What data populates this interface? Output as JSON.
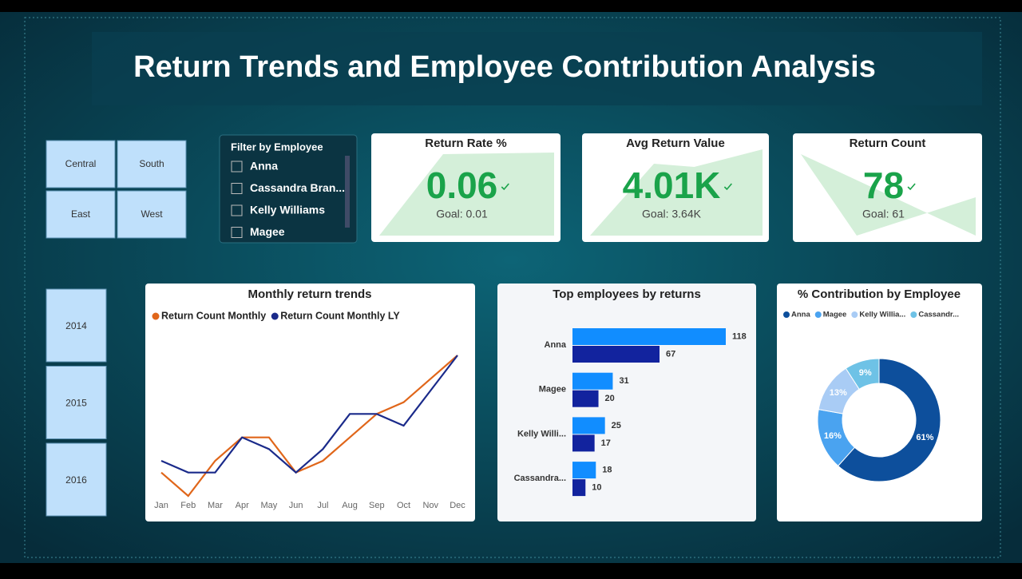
{
  "title": "Return Trends and Employee Contribution Analysis",
  "regions": [
    "Central",
    "South",
    "East",
    "West"
  ],
  "employee_filter": {
    "title": "Filter by Employee",
    "items": [
      "Anna",
      "Cassandra Bran...",
      "Kelly Williams",
      "Magee"
    ]
  },
  "years": [
    "2014",
    "2015",
    "2016"
  ],
  "kpis": [
    {
      "title": "Return Rate %",
      "value": "0.06",
      "goal": "Goal: 0.01"
    },
    {
      "title": "Avg Return Value",
      "value": "4.01K",
      "goal": "Goal: 3.64K"
    },
    {
      "title": "Return Count",
      "value": "78",
      "goal": "Goal: 61"
    }
  ],
  "chart_data": [
    {
      "type": "line",
      "title": "Monthly return trends",
      "categories": [
        "Jan",
        "Feb",
        "Mar",
        "Apr",
        "May",
        "Jun",
        "Jul",
        "Aug",
        "Sep",
        "Oct",
        "Nov",
        "Dec"
      ],
      "series": [
        {
          "name": "Return Count Monthly",
          "color": "#e0661a",
          "values": [
            3,
            1,
            4,
            6,
            6,
            3,
            4,
            6,
            8,
            9,
            11,
            13
          ]
        },
        {
          "name": "Return Count Monthly LY",
          "color": "#1a2a8a",
          "values": [
            4,
            3,
            3,
            6,
            5,
            3,
            5,
            8,
            8,
            7,
            10,
            13
          ]
        }
      ]
    },
    {
      "type": "hbar",
      "title": "Top employees by returns",
      "categories": [
        "Anna",
        "Magee",
        "Kelly Willi...",
        "Cassandra..."
      ],
      "series": [
        {
          "color": "#118dff",
          "values": [
            118,
            31,
            25,
            18
          ]
        },
        {
          "color": "#12239e",
          "values": [
            67,
            20,
            17,
            10
          ]
        }
      ]
    },
    {
      "type": "pie",
      "title": "% Contribution by Employee",
      "categories": [
        "Anna",
        "Magee",
        "Kelly Willia...",
        "Cassandr..."
      ],
      "values": [
        61,
        16,
        13,
        9
      ],
      "value_labels": [
        "61%",
        "16%",
        "13%",
        "9%"
      ],
      "colors": [
        "#0d4f9c",
        "#4aa3f0",
        "#a9ccf5",
        "#6ec2e6"
      ]
    }
  ]
}
